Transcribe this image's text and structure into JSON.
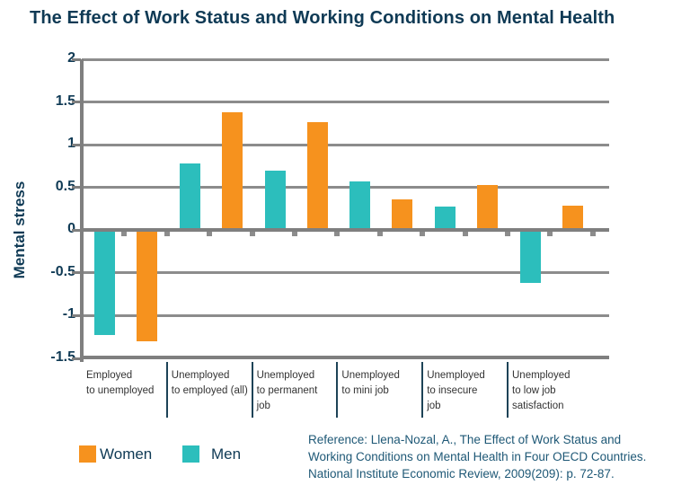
{
  "title": "The Effect of Work Status and Working Conditions on Mental Health",
  "colors": {
    "women": "#F6921E",
    "men": "#2CBEBC",
    "axis": "#7F7F7F",
    "grid": "#8C8C8C",
    "sep": "#1D4357",
    "navy": "#0F3A55",
    "cat": "#333333",
    "ref": "#1E5876"
  },
  "chart_data": {
    "type": "bar",
    "title": "The Effect of Work Status and Working Conditions on Mental Health",
    "xlabel": "",
    "ylabel": "Mental stress",
    "ylim": [
      -1.5,
      2
    ],
    "ytick_step": 0.5,
    "yticks": [
      "2",
      "1.5",
      "1",
      "0.5",
      "0",
      "-0.5",
      "-1",
      "-1.5"
    ],
    "grid": true,
    "legend_position": "bottom-left",
    "categories": [
      "Employed to unemployed",
      "Unemployed to employed (all)",
      "Unemployed to permanent job",
      "Unemployed to mini job",
      "Unemployed to insecure job",
      "Unemployed to low job satisfaction"
    ],
    "category_label_lines": [
      [
        "Employed",
        "to unemployed"
      ],
      [
        "Unemployed",
        "to employed (all)"
      ],
      [
        "Unemployed",
        "to permanent",
        "job"
      ],
      [
        "Unemployed",
        "to mini job"
      ],
      [
        "Unemployed",
        "to insecure",
        "job"
      ],
      [
        "Unemployed",
        "to low job",
        "satisfaction"
      ]
    ],
    "series": [
      {
        "name": "Men",
        "color_key": "men",
        "values": [
          -1.23,
          0.78,
          0.7,
          0.57,
          0.28,
          -0.62
        ]
      },
      {
        "name": "Women",
        "color_key": "women",
        "values": [
          -1.3,
          1.38,
          1.26,
          0.36,
          0.53,
          0.29
        ]
      }
    ],
    "bar_draw_order": [
      "Men",
      "Women"
    ],
    "legend": [
      {
        "label": "Women",
        "color_key": "women"
      },
      {
        "label": "Men",
        "color_key": "men"
      }
    ]
  },
  "reference": {
    "lines": [
      "Reference: Llena-Nozal, A., The Effect of Work Status and",
      "Working Conditions on Mental Health in Four OECD Countries.",
      "National Institute Economic Review, 2009(209): p. 72-87."
    ]
  }
}
